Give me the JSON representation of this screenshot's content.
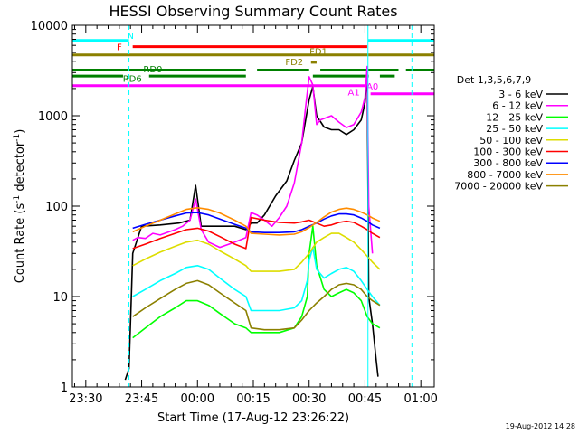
{
  "chart_data": {
    "type": "line",
    "title": "HESSI Observing Summary Count Rates",
    "xlabel": "Start Time (17-Aug-12 23:26:22)",
    "ylabel_main": "Count Rate (s",
    "ylabel_sup1": "-1",
    "ylabel_mid": " detector",
    "ylabel_sup2": "-1",
    "ylabel_end": ")",
    "y_scale": "log",
    "ylim": [
      1,
      10000
    ],
    "xlim_minutes_since_2330": [
      -3.6,
      93.6
    ],
    "x_ticks": [
      {
        "label": "23:30",
        "minutes": 0
      },
      {
        "label": "23:45",
        "minutes": 15
      },
      {
        "label": "00:00",
        "minutes": 30
      },
      {
        "label": "00:15",
        "minutes": 45
      },
      {
        "label": "00:30",
        "minutes": 60
      },
      {
        "label": "00:45",
        "minutes": 75
      },
      {
        "label": "01:00",
        "minutes": 90
      }
    ],
    "y_ticks": [
      {
        "label": "1",
        "value": 1
      },
      {
        "label": "10",
        "value": 10
      },
      {
        "label": "100",
        "value": 100
      },
      {
        "label": "1000",
        "value": 1000
      },
      {
        "label": "10000",
        "value": 10000
      }
    ],
    "legend_header": "Det 1,3,5,6,7,9",
    "legend_placement": "right",
    "series": [
      {
        "name": "3 - 6 keV",
        "color": "#000000",
        "points": [
          [
            10.6,
            1.2
          ],
          [
            11.6,
            1.6
          ],
          [
            12.6,
            30
          ],
          [
            15,
            60
          ],
          [
            20,
            62
          ],
          [
            25,
            65
          ],
          [
            28,
            70
          ],
          [
            29.5,
            170
          ],
          [
            31,
            60
          ],
          [
            35,
            60
          ],
          [
            40,
            60
          ],
          [
            43,
            55
          ],
          [
            44.4,
            65
          ],
          [
            46,
            65
          ],
          [
            48,
            80
          ],
          [
            51,
            130
          ],
          [
            54,
            190
          ],
          [
            56,
            320
          ],
          [
            58,
            500
          ],
          [
            60,
            1500
          ],
          [
            61,
            2100
          ],
          [
            62,
            1000
          ],
          [
            64,
            750
          ],
          [
            66,
            700
          ],
          [
            68,
            700
          ],
          [
            70,
            620
          ],
          [
            72,
            700
          ],
          [
            74,
            900
          ],
          [
            75,
            1400
          ],
          [
            75.6,
            3000
          ],
          [
            76,
            10
          ],
          [
            77,
            5
          ],
          [
            78,
            2
          ],
          [
            78.5,
            1.3
          ]
        ]
      },
      {
        "name": "6 - 12 keV",
        "color": "#ff00ff",
        "points": [
          [
            12.6,
            42
          ],
          [
            14,
            45
          ],
          [
            16,
            44
          ],
          [
            18,
            50
          ],
          [
            20,
            48
          ],
          [
            24,
            55
          ],
          [
            26,
            60
          ],
          [
            28,
            70
          ],
          [
            29.5,
            120
          ],
          [
            31,
            55
          ],
          [
            33,
            40
          ],
          [
            36,
            35
          ],
          [
            40,
            40
          ],
          [
            43,
            45
          ],
          [
            44.4,
            85
          ],
          [
            46,
            80
          ],
          [
            48,
            70
          ],
          [
            50,
            60
          ],
          [
            52,
            75
          ],
          [
            54,
            100
          ],
          [
            56,
            180
          ],
          [
            58,
            500
          ],
          [
            59,
            1200
          ],
          [
            60,
            2700
          ],
          [
            61,
            2200
          ],
          [
            62,
            800
          ],
          [
            63,
            900
          ],
          [
            66,
            1000
          ],
          [
            68,
            850
          ],
          [
            70,
            740
          ],
          [
            72,
            800
          ],
          [
            74,
            1100
          ],
          [
            75,
            1600
          ],
          [
            75.6,
            3500
          ],
          [
            76,
            100
          ],
          [
            77,
            30
          ]
        ]
      },
      {
        "name": "12 - 25 keV",
        "color": "#00ff00",
        "points": [
          [
            12.6,
            3.5
          ],
          [
            16,
            4.5
          ],
          [
            20,
            6
          ],
          [
            24,
            7.5
          ],
          [
            27,
            9
          ],
          [
            30,
            9
          ],
          [
            33,
            8
          ],
          [
            36,
            6.5
          ],
          [
            40,
            5
          ],
          [
            43,
            4.5
          ],
          [
            44.4,
            4
          ],
          [
            48,
            4
          ],
          [
            52,
            4
          ],
          [
            56,
            4.5
          ],
          [
            58,
            6
          ],
          [
            59.5,
            10
          ],
          [
            60,
            30
          ],
          [
            61,
            60
          ],
          [
            62,
            22
          ],
          [
            64,
            12
          ],
          [
            66,
            10
          ],
          [
            68,
            11
          ],
          [
            70,
            12
          ],
          [
            72,
            11
          ],
          [
            74,
            9
          ],
          [
            75.6,
            6
          ],
          [
            77,
            5
          ],
          [
            79,
            4.5
          ]
        ]
      },
      {
        "name": "25 - 50 keV",
        "color": "#00ffff",
        "points": [
          [
            12.6,
            10
          ],
          [
            16,
            12
          ],
          [
            20,
            15
          ],
          [
            24,
            18
          ],
          [
            27,
            21
          ],
          [
            30,
            22
          ],
          [
            33,
            20
          ],
          [
            36,
            16
          ],
          [
            40,
            12
          ],
          [
            43,
            10
          ],
          [
            44.4,
            7
          ],
          [
            48,
            7
          ],
          [
            52,
            7
          ],
          [
            56,
            7.5
          ],
          [
            58,
            9
          ],
          [
            59.5,
            15
          ],
          [
            60,
            25
          ],
          [
            61,
            35
          ],
          [
            62,
            20
          ],
          [
            64,
            16
          ],
          [
            66,
            18
          ],
          [
            68,
            20
          ],
          [
            70,
            21
          ],
          [
            72,
            19
          ],
          [
            74,
            15
          ],
          [
            75.6,
            12
          ],
          [
            77,
            10
          ],
          [
            79,
            8
          ]
        ]
      },
      {
        "name": "50 - 100 keV",
        "color": "#dddd00",
        "points": [
          [
            12.6,
            22
          ],
          [
            16,
            26
          ],
          [
            20,
            31
          ],
          [
            24,
            36
          ],
          [
            27,
            40
          ],
          [
            30,
            42
          ],
          [
            33,
            38
          ],
          [
            36,
            32
          ],
          [
            40,
            26
          ],
          [
            43,
            22
          ],
          [
            44.4,
            19
          ],
          [
            48,
            19
          ],
          [
            52,
            19
          ],
          [
            56,
            20
          ],
          [
            58,
            24
          ],
          [
            60,
            30
          ],
          [
            62,
            40
          ],
          [
            64,
            45
          ],
          [
            66,
            50
          ],
          [
            68,
            50
          ],
          [
            70,
            45
          ],
          [
            72,
            40
          ],
          [
            74,
            33
          ],
          [
            75.6,
            28
          ],
          [
            77,
            24
          ],
          [
            79,
            20
          ]
        ]
      },
      {
        "name": "100 - 300 keV",
        "color": "#ff0000",
        "points": [
          [
            12.6,
            34
          ],
          [
            16,
            38
          ],
          [
            20,
            44
          ],
          [
            24,
            50
          ],
          [
            27,
            55
          ],
          [
            30,
            57
          ],
          [
            33,
            53
          ],
          [
            36,
            46
          ],
          [
            40,
            38
          ],
          [
            43,
            34
          ],
          [
            44.4,
            75
          ],
          [
            48,
            70
          ],
          [
            52,
            66
          ],
          [
            56,
            65
          ],
          [
            58,
            67
          ],
          [
            60,
            70
          ],
          [
            62,
            65
          ],
          [
            64,
            60
          ],
          [
            66,
            62
          ],
          [
            68,
            66
          ],
          [
            70,
            68
          ],
          [
            72,
            66
          ],
          [
            74,
            60
          ],
          [
            75.6,
            55
          ],
          [
            77,
            50
          ],
          [
            79,
            45
          ]
        ]
      },
      {
        "name": "300 - 800 keV",
        "color": "#0000ff",
        "points": [
          [
            12.6,
            57
          ],
          [
            16,
            63
          ],
          [
            20,
            70
          ],
          [
            24,
            78
          ],
          [
            27,
            84
          ],
          [
            30,
            85
          ],
          [
            33,
            80
          ],
          [
            36,
            72
          ],
          [
            40,
            63
          ],
          [
            43,
            57
          ],
          [
            44.4,
            52
          ],
          [
            48,
            51
          ],
          [
            52,
            51
          ],
          [
            56,
            52
          ],
          [
            58,
            55
          ],
          [
            60,
            60
          ],
          [
            62,
            65
          ],
          [
            64,
            72
          ],
          [
            66,
            78
          ],
          [
            68,
            82
          ],
          [
            70,
            82
          ],
          [
            72,
            80
          ],
          [
            74,
            74
          ],
          [
            75.6,
            68
          ],
          [
            77,
            62
          ],
          [
            79,
            57
          ]
        ]
      },
      {
        "name": "800 - 7000 keV",
        "color": "#ff8c00",
        "points": [
          [
            12.6,
            52
          ],
          [
            16,
            60
          ],
          [
            20,
            70
          ],
          [
            24,
            82
          ],
          [
            27,
            92
          ],
          [
            30,
            96
          ],
          [
            33,
            92
          ],
          [
            36,
            84
          ],
          [
            40,
            70
          ],
          [
            43,
            60
          ],
          [
            44.4,
            50
          ],
          [
            48,
            49
          ],
          [
            52,
            48
          ],
          [
            56,
            49
          ],
          [
            58,
            52
          ],
          [
            60,
            58
          ],
          [
            62,
            66
          ],
          [
            64,
            76
          ],
          [
            66,
            86
          ],
          [
            68,
            92
          ],
          [
            70,
            95
          ],
          [
            72,
            92
          ],
          [
            74,
            86
          ],
          [
            75.6,
            80
          ],
          [
            77,
            74
          ],
          [
            79,
            68
          ]
        ]
      },
      {
        "name": "7000 - 20000 keV",
        "color": "#8b8000",
        "points": [
          [
            12.6,
            6
          ],
          [
            16,
            7.5
          ],
          [
            20,
            9.5
          ],
          [
            24,
            12
          ],
          [
            27,
            14
          ],
          [
            30,
            15
          ],
          [
            33,
            13.5
          ],
          [
            36,
            11
          ],
          [
            40,
            8.5
          ],
          [
            43,
            7
          ],
          [
            44.4,
            4.5
          ],
          [
            48,
            4.3
          ],
          [
            52,
            4.3
          ],
          [
            56,
            4.5
          ],
          [
            58,
            5.5
          ],
          [
            60,
            7
          ],
          [
            62,
            8.5
          ],
          [
            64,
            10
          ],
          [
            66,
            12
          ],
          [
            68,
            13.5
          ],
          [
            70,
            14
          ],
          [
            72,
            13.5
          ],
          [
            74,
            12
          ],
          [
            75.6,
            10
          ],
          [
            77,
            9
          ],
          [
            79,
            8
          ]
        ]
      }
    ],
    "vlines": [
      {
        "minutes": 11.6,
        "color": "#00ffff",
        "dashed": true
      },
      {
        "minutes": 75.8,
        "color": "#00ffff",
        "dashed": false
      },
      {
        "minutes": 87.6,
        "color": "#00ffff",
        "dashed": true
      }
    ],
    "flag_bars": [
      {
        "label": "N",
        "color": "#00ffff",
        "y": 6800,
        "segments": [
          [
            -3.6,
            11.6
          ],
          [
            75.8,
            93.6
          ]
        ],
        "label_at_min": 12.0,
        "label_y": 7800
      },
      {
        "label": "F",
        "color": "#ff0000",
        "y": 5800,
        "segments": [
          [
            12.6,
            75.6
          ]
        ],
        "label_at_min": 9.0,
        "label_y": 5800
      },
      {
        "label": "FD1",
        "color": "#8b8000",
        "y": 4700,
        "segments": [
          [
            -3.6,
            93.6
          ]
        ],
        "label_at_min": 62.5,
        "label_y": 5200
      },
      {
        "label": "FD2",
        "color": "#8b8000",
        "y": 3900,
        "segments": [
          [
            60.5,
            62
          ]
        ],
        "label_at_min": 56.0,
        "label_y": 4000
      },
      {
        "label": "RD0",
        "color": "#008000",
        "y": 3200,
        "segments": [
          [
            -3.6,
            43
          ],
          [
            46,
            60
          ],
          [
            63,
            84
          ],
          [
            86,
            93.6
          ]
        ],
        "label_at_min": 18.0,
        "label_y": 3300
      },
      {
        "label": "RD6",
        "color": "#008000",
        "y": 2750,
        "segments": [
          [
            -3.6,
            10
          ],
          [
            17,
            43
          ],
          [
            61,
            76
          ],
          [
            79,
            83
          ]
        ],
        "label_at_min": 12.5,
        "label_y": 2600
      },
      {
        "label": "A1",
        "color": "#ff00ff",
        "y": 2150,
        "segments": [
          [
            -3.6,
            75.6
          ]
        ],
        "label_at_min": 72.0,
        "label_y": 1850
      },
      {
        "label": "A0",
        "color": "#ff00ff",
        "y": 1750,
        "segments": [
          [
            76.5,
            93.6
          ]
        ],
        "label_at_min": 77.0,
        "label_y": 2150
      }
    ]
  },
  "footer": {
    "timestamp": "19-Aug-2012 14:28"
  }
}
